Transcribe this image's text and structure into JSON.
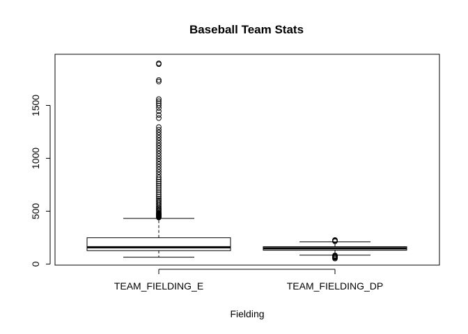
{
  "chart_data": {
    "type": "boxplot",
    "title": "Baseball Team Stats",
    "xlabel": "Fielding",
    "ylabel": "",
    "ylim": [
      0,
      1900
    ],
    "y_ticks": [
      0,
      500,
      1000,
      1500
    ],
    "grid": false,
    "legend": "none",
    "categories": [
      "TEAM_FIELDING_E",
      "TEAM_FIELDING_DP"
    ],
    "boxes": [
      {
        "category": "TEAM_FIELDING_E",
        "whisker_low": 65,
        "q1": 127,
        "median": 159,
        "q3": 249,
        "whisker_high": 432,
        "outliers": [
          440,
          445,
          450,
          455,
          460,
          465,
          470,
          475,
          480,
          490,
          500,
          510,
          520,
          530,
          545,
          560,
          575,
          590,
          605,
          620,
          640,
          660,
          680,
          700,
          720,
          740,
          760,
          780,
          800,
          820,
          845,
          870,
          895,
          920,
          945,
          970,
          995,
          1020,
          1045,
          1070,
          1095,
          1120,
          1145,
          1170,
          1195,
          1220,
          1245,
          1270,
          1295,
          1380,
          1410,
          1445,
          1475,
          1500,
          1520,
          1540,
          1560,
          1725,
          1740,
          1890,
          1898
        ]
      },
      {
        "category": "TEAM_FIELDING_DP",
        "whisker_low": 85,
        "q1": 131,
        "median": 149,
        "q3": 164,
        "whisker_high": 210,
        "outliers": [
          52,
          60,
          66,
          72,
          78,
          82,
          215,
          222,
          228
        ]
      }
    ]
  }
}
